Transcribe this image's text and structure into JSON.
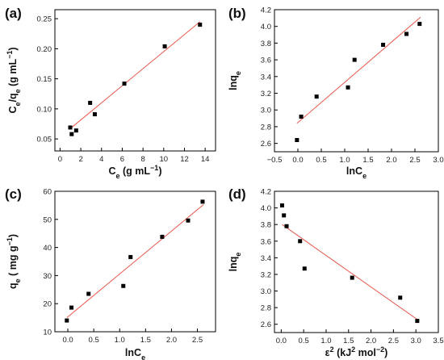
{
  "chart_data": [
    {
      "type": "scatter",
      "panel_label": "(a)",
      "xlabel": "Ce (g mL−1)",
      "xlabel_parts": [
        {
          "t": "C",
          "sub": false,
          "sup": false
        },
        {
          "t": "e",
          "sub": true,
          "sup": false
        },
        {
          "t": " (g mL",
          "sub": false,
          "sup": false
        },
        {
          "t": "−1",
          "sub": false,
          "sup": true
        },
        {
          "t": ")",
          "sub": false,
          "sup": false
        }
      ],
      "ylabel": "Ce/qe (g mL−1)",
      "ylabel_parts": [
        {
          "t": "C",
          "sub": false,
          "sup": false
        },
        {
          "t": "e",
          "sub": true,
          "sup": false
        },
        {
          "t": "/q",
          "sub": false,
          "sup": false
        },
        {
          "t": "e",
          "sub": true,
          "sup": false
        },
        {
          "t": " (g mL",
          "sub": false,
          "sup": false
        },
        {
          "t": "−1",
          "sub": false,
          "sup": true
        },
        {
          "t": ")",
          "sub": false,
          "sup": false
        }
      ],
      "xlim": [
        -0.5,
        15
      ],
      "ylim": [
        0.03,
        0.265
      ],
      "xticks": [
        0,
        2,
        4,
        6,
        8,
        10,
        12,
        14
      ],
      "xtick_labels": [
        "0",
        "2",
        "4",
        "6",
        "8",
        "10",
        "12",
        "14"
      ],
      "yticks": [
        0.05,
        0.1,
        0.15,
        0.2,
        0.25
      ],
      "ytick_labels": [
        "0.05",
        "0.10",
        "0.15",
        "0.20",
        "0.25"
      ],
      "points": [
        {
          "x": 0.98,
          "y": 0.069
        },
        {
          "x": 1.12,
          "y": 0.058
        },
        {
          "x": 1.55,
          "y": 0.064
        },
        {
          "x": 2.9,
          "y": 0.11
        },
        {
          "x": 3.35,
          "y": 0.091
        },
        {
          "x": 6.2,
          "y": 0.142
        },
        {
          "x": 10.1,
          "y": 0.204
        },
        {
          "x": 13.5,
          "y": 0.24
        }
      ],
      "fit_line": {
        "x": [
          0.9,
          13.5
        ],
        "y": [
          0.066,
          0.245
        ]
      },
      "line_color": "#e8574c",
      "marker_color": "#000000"
    },
    {
      "type": "scatter",
      "panel_label": "(b)",
      "xlabel": "lnCe",
      "xlabel_parts": [
        {
          "t": "lnC",
          "sub": false,
          "sup": false
        },
        {
          "t": "e",
          "sub": true,
          "sup": false
        }
      ],
      "ylabel": "lnqe",
      "ylabel_parts": [
        {
          "t": "lnq",
          "sub": false,
          "sup": false
        },
        {
          "t": "e",
          "sub": true,
          "sup": false
        }
      ],
      "xlim": [
        -0.5,
        3.0
      ],
      "ylim": [
        2.5,
        4.2
      ],
      "xticks": [
        -0.5,
        0.0,
        0.5,
        1.0,
        1.5,
        2.0,
        2.5,
        3.0
      ],
      "xtick_labels": [
        "−0.5",
        "0.0",
        "0.5",
        "1.0",
        "1.5",
        "2.0",
        "2.5",
        "3.0"
      ],
      "yticks": [
        2.6,
        2.8,
        3.0,
        3.2,
        3.4,
        3.6,
        3.8,
        4.0,
        4.2
      ],
      "ytick_labels": [
        "2.6",
        "2.8",
        "3.0",
        "3.2",
        "3.4",
        "3.6",
        "3.8",
        "4.0",
        "4.2"
      ],
      "points": [
        {
          "x": -0.02,
          "y": 2.64
        },
        {
          "x": 0.07,
          "y": 2.92
        },
        {
          "x": 0.4,
          "y": 3.16
        },
        {
          "x": 1.07,
          "y": 3.27
        },
        {
          "x": 1.21,
          "y": 3.6
        },
        {
          "x": 1.82,
          "y": 3.78
        },
        {
          "x": 2.32,
          "y": 3.91
        },
        {
          "x": 2.6,
          "y": 4.03
        }
      ],
      "fit_line": {
        "x": [
          -0.02,
          2.62
        ],
        "y": [
          2.84,
          4.11
        ]
      },
      "line_color": "#e8574c",
      "marker_color": "#000000"
    },
    {
      "type": "scatter",
      "panel_label": "(c)",
      "xlabel": "lnCe",
      "xlabel_parts": [
        {
          "t": "lnC",
          "sub": false,
          "sup": false
        },
        {
          "t": "e",
          "sub": true,
          "sup": false
        }
      ],
      "ylabel": "qe ( mg g−1)",
      "ylabel_parts": [
        {
          "t": "q",
          "sub": false,
          "sup": false
        },
        {
          "t": "e",
          "sub": true,
          "sup": false
        },
        {
          "t": " ( mg g",
          "sub": false,
          "sup": false
        },
        {
          "t": "−1",
          "sub": false,
          "sup": true
        },
        {
          "t": ")",
          "sub": false,
          "sup": false
        }
      ],
      "xlim": [
        -0.25,
        2.85
      ],
      "ylim": [
        10,
        60
      ],
      "xticks": [
        0.0,
        0.5,
        1.0,
        1.5,
        2.0,
        2.5
      ],
      "xtick_labels": [
        "0.0",
        "0.5",
        "1.0",
        "1.5",
        "2.0",
        "2.5"
      ],
      "yticks": [
        10,
        20,
        30,
        40,
        50,
        60
      ],
      "ytick_labels": [
        "10",
        "20",
        "30",
        "40",
        "50",
        "60"
      ],
      "points": [
        {
          "x": -0.02,
          "y": 14.0
        },
        {
          "x": 0.07,
          "y": 18.6
        },
        {
          "x": 0.4,
          "y": 23.5
        },
        {
          "x": 1.07,
          "y": 26.3
        },
        {
          "x": 1.21,
          "y": 36.6
        },
        {
          "x": 1.82,
          "y": 43.8
        },
        {
          "x": 2.32,
          "y": 49.6
        },
        {
          "x": 2.6,
          "y": 56.3
        }
      ],
      "fit_line": {
        "x": [
          -0.02,
          2.62
        ],
        "y": [
          15.0,
          55.3
        ]
      },
      "line_color": "#e8574c",
      "marker_color": "#000000"
    },
    {
      "type": "scatter",
      "panel_label": "(d)",
      "xlabel": "ε2 (kJ2 mol−2)",
      "xlabel_parts": [
        {
          "t": "ε",
          "sub": false,
          "sup": false
        },
        {
          "t": "2",
          "sub": false,
          "sup": true
        },
        {
          "t": " (kJ",
          "sub": false,
          "sup": false
        },
        {
          "t": "2",
          "sub": false,
          "sup": true
        },
        {
          "t": " mol",
          "sub": false,
          "sup": false
        },
        {
          "t": "−2",
          "sub": false,
          "sup": true
        },
        {
          "t": ")",
          "sub": false,
          "sup": false
        }
      ],
      "ylabel": "lnqe",
      "ylabel_parts": [
        {
          "t": "lnq",
          "sub": false,
          "sup": false
        },
        {
          "t": "e",
          "sub": true,
          "sup": false
        }
      ],
      "xlim": [
        -0.15,
        3.5
      ],
      "ylim": [
        2.5,
        4.2
      ],
      "xticks": [
        0.0,
        0.5,
        1.0,
        1.5,
        2.0,
        2.5,
        3.0,
        3.5
      ],
      "xtick_labels": [
        "0.0",
        "0.5",
        "1.0",
        "1.5",
        "2.0",
        "2.5",
        "3.0",
        "3.5"
      ],
      "yticks": [
        2.6,
        2.8,
        3.0,
        3.2,
        3.4,
        3.6,
        3.8,
        4.0,
        4.2
      ],
      "ytick_labels": [
        "2.6",
        "2.8",
        "3.0",
        "3.2",
        "3.4",
        "3.6",
        "3.8",
        "4.0",
        "4.2"
      ],
      "points": [
        {
          "x": 0.02,
          "y": 4.03
        },
        {
          "x": 0.06,
          "y": 3.91
        },
        {
          "x": 0.12,
          "y": 3.78
        },
        {
          "x": 0.42,
          "y": 3.6
        },
        {
          "x": 0.52,
          "y": 3.27
        },
        {
          "x": 1.58,
          "y": 3.16
        },
        {
          "x": 2.65,
          "y": 2.92
        },
        {
          "x": 3.03,
          "y": 2.64
        }
      ],
      "fit_line": {
        "x": [
          0.02,
          3.05
        ],
        "y": [
          3.8,
          2.65
        ]
      },
      "line_color": "#e8574c",
      "marker_color": "#000000"
    }
  ]
}
